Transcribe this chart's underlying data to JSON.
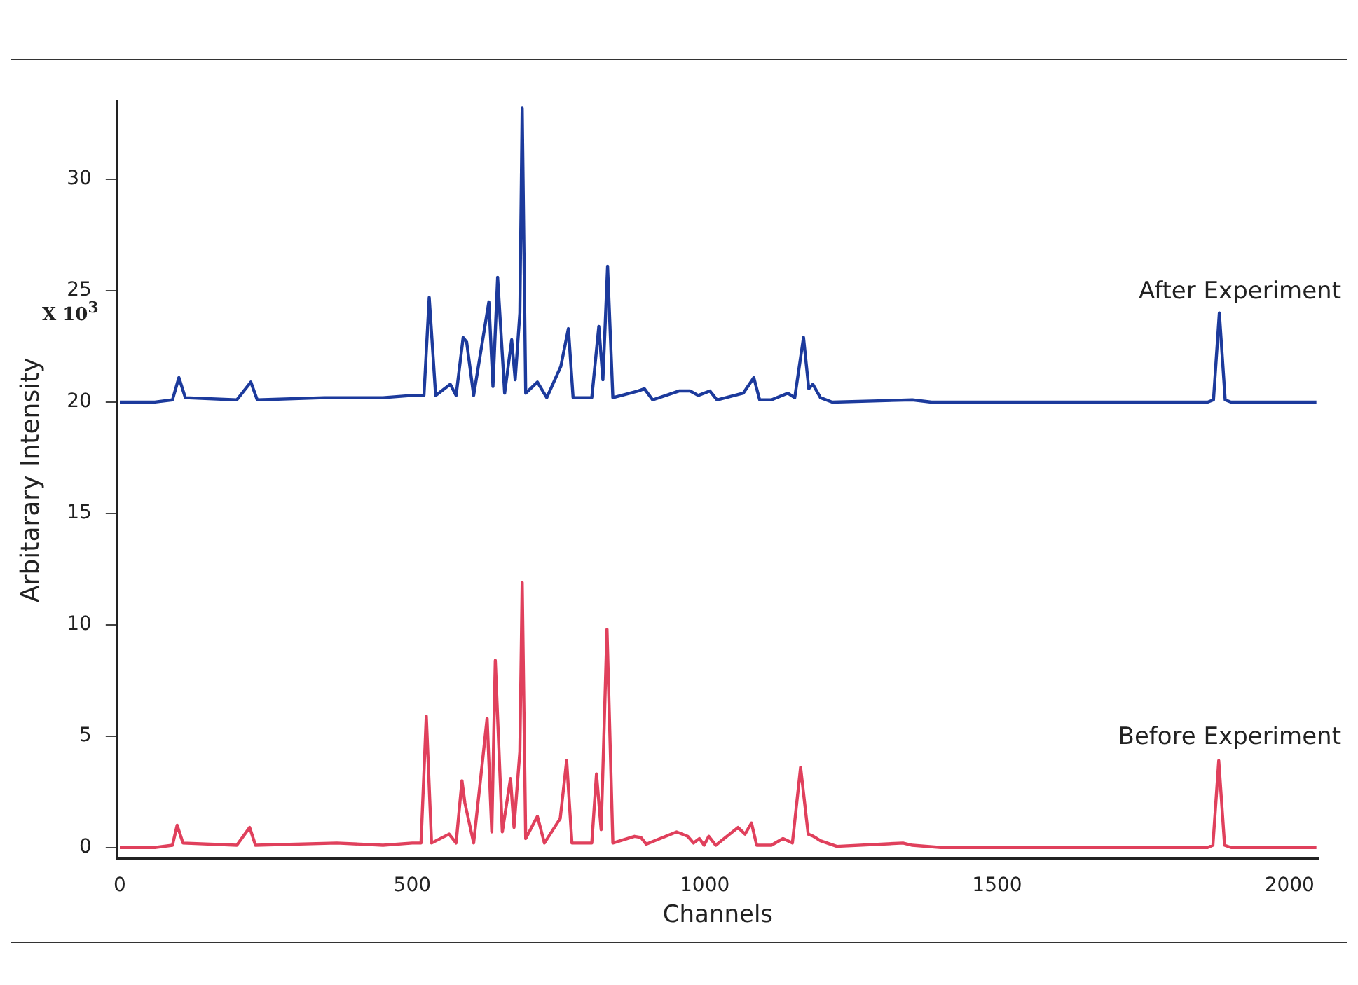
{
  "chart_data": {
    "type": "line",
    "xlabel": "Channels",
    "ylabel": "Arbitarary Intensity",
    "annotations": [
      "X 10$^{3}$"
    ],
    "xlim": [
      -5,
      2050
    ],
    "xticks": [
      0,
      500,
      1000,
      1500,
      2000
    ],
    "ylim": [
      -0.5,
      33.5
    ],
    "yticks": [
      0,
      5,
      10,
      15,
      20,
      25,
      30
    ],
    "grid": false,
    "marker": "none",
    "line_style": "solid",
    "series": [
      {
        "name": "After Experiment",
        "color": "#1c3a9c",
        "x": [
          0,
          60,
          90,
          101,
          112,
          200,
          224,
          235,
          350,
          450,
          500,
          520,
          529,
          540,
          565,
          575,
          587,
          593,
          605,
          631,
          638,
          646,
          658,
          670,
          676,
          684,
          688,
          694,
          714,
          730,
          754,
          767,
          775,
          807,
          819,
          826,
          834,
          843,
          886,
          897,
          911,
          956,
          975,
          989,
          1009,
          1021,
          1066,
          1084,
          1094,
          1114,
          1142,
          1154,
          1169,
          1178,
          1185,
          1198,
          1218,
          1355,
          1388,
          1860,
          1870,
          1880,
          1890,
          1900,
          2046
        ],
        "values": [
          20.0,
          20.0,
          20.1,
          21.1,
          20.2,
          20.1,
          20.9,
          20.1,
          20.2,
          20.2,
          20.3,
          20.3,
          24.7,
          20.3,
          20.8,
          20.3,
          22.9,
          22.7,
          20.3,
          24.5,
          20.7,
          25.6,
          20.4,
          22.8,
          21.0,
          24.0,
          33.2,
          20.4,
          20.9,
          20.2,
          21.6,
          23.3,
          20.2,
          20.2,
          23.4,
          21.0,
          26.1,
          20.2,
          20.5,
          20.6,
          20.1,
          20.5,
          20.5,
          20.3,
          20.5,
          20.1,
          20.4,
          21.1,
          20.1,
          20.1,
          20.4,
          20.2,
          22.9,
          20.6,
          20.8,
          20.2,
          20.0,
          20.1,
          20.0,
          20.0,
          20.1,
          24.0,
          20.1,
          20.0,
          20.0
        ]
      },
      {
        "name": "Before Experiment",
        "color": "#e0405c",
        "x": [
          0,
          60,
          90,
          98,
          108,
          200,
          222,
          232,
          371,
          450,
          500,
          515,
          524,
          533,
          563,
          575,
          585,
          590,
          605,
          628,
          636,
          642,
          654,
          668,
          674,
          684,
          688,
          694,
          714,
          726,
          753,
          764,
          773,
          807,
          815,
          823,
          833,
          843,
          880,
          891,
          900,
          952,
          971,
          981,
          991,
          999,
          1007,
          1019,
          1057,
          1069,
          1080,
          1089,
          1114,
          1134,
          1150,
          1164,
          1177,
          1186,
          1198,
          1226,
          1339,
          1355,
          1404,
          1860,
          1869,
          1879,
          1889,
          1900,
          2046
        ],
        "values": [
          0.0,
          0.0,
          0.1,
          1.0,
          0.2,
          0.1,
          0.9,
          0.1,
          0.2,
          0.1,
          0.2,
          0.2,
          5.9,
          0.2,
          0.6,
          0.2,
          3.0,
          2.0,
          0.2,
          5.8,
          0.7,
          8.4,
          0.7,
          3.1,
          0.9,
          4.3,
          11.9,
          0.4,
          1.4,
          0.2,
          1.3,
          3.9,
          0.2,
          0.2,
          3.3,
          0.8,
          9.8,
          0.2,
          0.5,
          0.45,
          0.15,
          0.7,
          0.5,
          0.2,
          0.4,
          0.1,
          0.5,
          0.1,
          0.9,
          0.6,
          1.1,
          0.1,
          0.1,
          0.4,
          0.2,
          3.6,
          0.6,
          0.5,
          0.3,
          0.05,
          0.2,
          0.1,
          0.0,
          0.0,
          0.1,
          3.9,
          0.1,
          0.0,
          0.0
        ]
      }
    ]
  }
}
